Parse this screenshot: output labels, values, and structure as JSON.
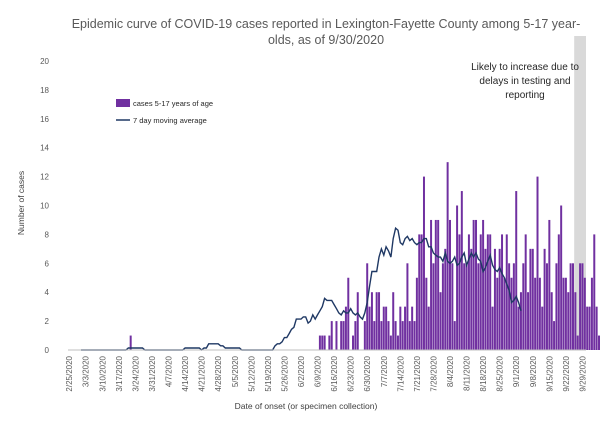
{
  "chart_data": {
    "type": "bar",
    "title_lines": [
      "Epidemic curve of COVID-19 cases reported in Lexington-Fayette County among 5-17 year-",
      "olds, as of 9/30/2020"
    ],
    "xlabel": "Date of onset (or specimen collection)",
    "ylabel": "Number of cases",
    "ylim": [
      0,
      20
    ],
    "y_ticks": [
      "0",
      "2",
      "4",
      "6",
      "8",
      "10",
      "12",
      "14",
      "16",
      "18",
      "20"
    ],
    "x_ticks": [
      "2/25/2020",
      "3/3/2020",
      "3/10/2020",
      "3/17/2020",
      "3/24/2020",
      "3/31/2020",
      "4/7/2020",
      "4/14/2020",
      "4/21/2020",
      "4/28/2020",
      "5/5/2020",
      "5/12/2020",
      "5/19/2020",
      "5/26/2020",
      "6/2/2020",
      "6/9/2020",
      "6/16/2020",
      "6/23/2020",
      "6/30/2020",
      "7/7/2020",
      "7/14/2020",
      "7/21/2020",
      "7/28/2020",
      "8/4/2020",
      "8/11/2020",
      "8/18/2020",
      "8/25/2020",
      "9/1/2020",
      "9/8/2020",
      "9/15/2020",
      "9/22/2020",
      "9/29/2020"
    ],
    "grid": false,
    "legend_position": "upper-left",
    "series": [
      {
        "name": "cases 5-17 years of age",
        "type": "bar",
        "color": "#7030a0",
        "start_date": "2/25/2020",
        "values": [
          0,
          0,
          0,
          0,
          0,
          0,
          0,
          0,
          0,
          0,
          0,
          0,
          0,
          0,
          0,
          0,
          0,
          0,
          0,
          0,
          0,
          0,
          0,
          0,
          0,
          0,
          1,
          0,
          0,
          0,
          0,
          0,
          0,
          0,
          0,
          0,
          0,
          0,
          0,
          0,
          0,
          0,
          0,
          0,
          0,
          0,
          0,
          0,
          0,
          0,
          0,
          0,
          0,
          0,
          0,
          0,
          0,
          0,
          0,
          0,
          0,
          0,
          0,
          0,
          0,
          0,
          0,
          0,
          0,
          0,
          0,
          0,
          0,
          0,
          0,
          0,
          0,
          0,
          0,
          0,
          0,
          0,
          0,
          0,
          0,
          0,
          0,
          0,
          0,
          0,
          0,
          0,
          0,
          0,
          0,
          0,
          0,
          0,
          0,
          0,
          0,
          0,
          0,
          0,
          0,
          0,
          1,
          1,
          1,
          0,
          1,
          2,
          0,
          2,
          0,
          2,
          2,
          3,
          5,
          0,
          1,
          2,
          4,
          0,
          0,
          2,
          6,
          3,
          4,
          2,
          4,
          4,
          2,
          3,
          3,
          2,
          1,
          4,
          2,
          1,
          3,
          2,
          3,
          6,
          2,
          3,
          2,
          5,
          8,
          8,
          12,
          5,
          3,
          9,
          6,
          9,
          9,
          4,
          6,
          7,
          13,
          9,
          6,
          2,
          10,
          8,
          11,
          6,
          6,
          8,
          7,
          9,
          9,
          6,
          8,
          9,
          7,
          8,
          8,
          3,
          7,
          5,
          7,
          8,
          5,
          8,
          6,
          5,
          6,
          11,
          3,
          4,
          6,
          8,
          4,
          7,
          7,
          5,
          12,
          5,
          3,
          7,
          6,
          9,
          4,
          2,
          6,
          8,
          10,
          5,
          5,
          4,
          6,
          6,
          4,
          1,
          6,
          6,
          5,
          3,
          3,
          5,
          8,
          3,
          1,
          2
        ]
      },
      {
        "name": "7 day moving average",
        "type": "line",
        "color": "#1f3864",
        "start_date": "3/1/2020",
        "values": [
          0,
          0,
          0,
          0,
          0,
          0,
          0,
          0,
          0,
          0,
          0,
          0,
          0,
          0,
          0,
          0,
          0,
          0,
          0,
          0,
          0.14,
          0.14,
          0.14,
          0.14,
          0.14,
          0.14,
          0.14,
          0,
          0,
          0,
          0,
          0,
          0,
          0,
          0,
          0,
          0,
          0,
          0,
          0,
          0,
          0,
          0,
          0,
          0.14,
          0.14,
          0.14,
          0.14,
          0.14,
          0.14,
          0.14,
          0,
          0.14,
          0.14,
          0.43,
          0.43,
          0.43,
          0.43,
          0.43,
          0.29,
          0.29,
          0.14,
          0.14,
          0.14,
          0.14,
          0.14,
          0.14,
          0.14,
          0,
          0,
          0,
          0,
          0,
          0,
          0,
          0,
          0,
          0,
          0,
          0,
          0,
          0,
          0.29,
          0.43,
          0.43,
          0.57,
          0.86,
          0.86,
          1.14,
          1.43,
          1.57,
          2.14,
          2.14,
          2.14,
          2.29,
          2.29,
          1.86,
          2,
          2.43,
          2.14,
          2.43,
          2.71,
          3,
          3.57,
          3.43,
          3.43,
          3.43,
          3.14,
          2.86,
          2.57,
          2.43,
          2.71,
          2.57,
          2.57,
          2.86,
          2.57,
          2.43,
          2.57,
          2.29,
          2.14,
          2.57,
          3.29,
          4.43,
          5.43,
          5.43,
          5.43,
          6.43,
          7,
          6.57,
          7.14,
          6.86,
          6.43,
          7.71,
          8.43,
          8.29,
          7.43,
          7.29,
          7.71,
          7.86,
          7.57,
          7.71,
          7.43,
          7.29,
          7.43,
          7.43,
          7.71,
          7.71,
          7.14,
          7.14,
          6.71,
          6.57,
          6.43,
          6.43,
          6.14,
          6.71,
          6.14,
          6,
          6.14,
          6.43,
          5.86,
          6,
          6.43,
          6.71,
          5.86,
          6.29,
          6.71,
          6.43,
          6.71,
          6.29,
          6.14,
          5.43,
          5.71,
          6.14,
          6.57,
          5.86,
          5.57,
          5.43,
          5.71,
          5.29,
          5,
          4.57,
          4.14,
          3.29,
          3.43,
          3.71,
          3.29,
          2.71
        ]
      }
    ],
    "annotation_lines": [
      "Likely to increase due to",
      "delays in testing and",
      "reporting"
    ],
    "shaded_region": {
      "from": "9/26/2020",
      "to": "9/30/2020",
      "color": "#d9d9d9"
    }
  }
}
